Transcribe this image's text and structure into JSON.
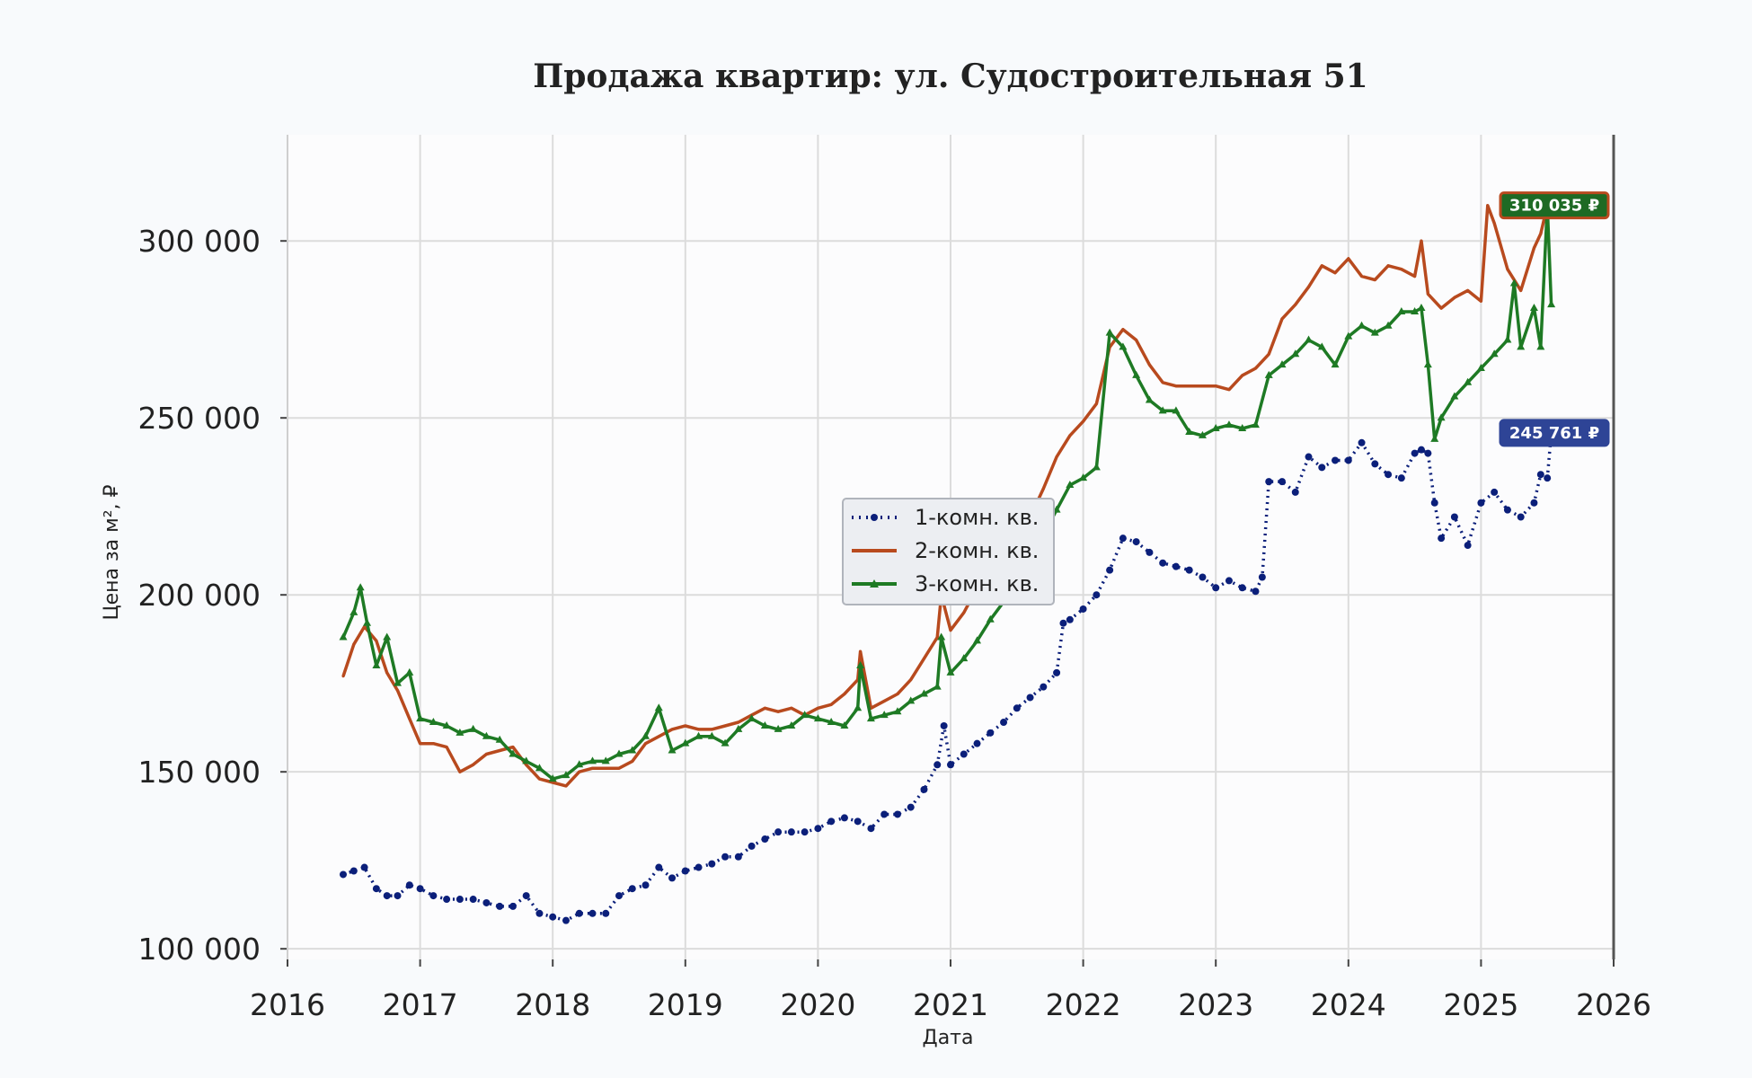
{
  "chart_data": {
    "type": "line",
    "title": "Продажа квартир: ул. Судостроительная 51",
    "xlabel": "Дата",
    "ylabel": "Цена за м², ₽",
    "xlim": [
      2016,
      2026
    ],
    "ylim": [
      97000,
      330000
    ],
    "x_ticks": [
      2016,
      2017,
      2018,
      2019,
      2020,
      2021,
      2022,
      2023,
      2024,
      2025,
      2026
    ],
    "y_ticks": [
      100000,
      150000,
      200000,
      250000,
      300000
    ],
    "y_tick_labels": [
      "100 000",
      "150 000",
      "200 000",
      "250 000",
      "300 000"
    ],
    "grid": true,
    "legend_position": "center",
    "series": [
      {
        "name": "1-комн. кв.",
        "color": "#0b1f7a",
        "style": "dotted-circle-markers",
        "x": [
          2016.42,
          2016.5,
          2016.58,
          2016.67,
          2016.75,
          2016.83,
          2016.92,
          2017.0,
          2017.1,
          2017.2,
          2017.3,
          2017.4,
          2017.5,
          2017.6,
          2017.7,
          2017.8,
          2017.9,
          2018.0,
          2018.1,
          2018.2,
          2018.3,
          2018.4,
          2018.5,
          2018.6,
          2018.7,
          2018.8,
          2018.9,
          2019.0,
          2019.1,
          2019.2,
          2019.3,
          2019.4,
          2019.5,
          2019.6,
          2019.7,
          2019.8,
          2019.9,
          2020.0,
          2020.1,
          2020.2,
          2020.3,
          2020.4,
          2020.5,
          2020.6,
          2020.7,
          2020.8,
          2020.9,
          2020.95,
          2021.0,
          2021.1,
          2021.2,
          2021.3,
          2021.4,
          2021.5,
          2021.6,
          2021.7,
          2021.8,
          2021.85,
          2021.9,
          2022.0,
          2022.1,
          2022.2,
          2022.3,
          2022.4,
          2022.5,
          2022.6,
          2022.7,
          2022.8,
          2022.9,
          2023.0,
          2023.1,
          2023.2,
          2023.3,
          2023.35,
          2023.4,
          2023.5,
          2023.6,
          2023.7,
          2023.8,
          2023.9,
          2024.0,
          2024.1,
          2024.2,
          2024.3,
          2024.4,
          2024.5,
          2024.55,
          2024.6,
          2024.65,
          2024.7,
          2024.8,
          2024.9,
          2025.0,
          2025.1,
          2025.2,
          2025.3,
          2025.4,
          2025.45,
          2025.5,
          2025.53
        ],
        "y": [
          121000,
          122000,
          123000,
          117000,
          115000,
          115000,
          118000,
          117000,
          115000,
          114000,
          114000,
          114000,
          113000,
          112000,
          112000,
          115000,
          110000,
          109000,
          108000,
          110000,
          110000,
          110000,
          115000,
          117000,
          118000,
          123000,
          120000,
          122000,
          123000,
          124000,
          126000,
          126000,
          129000,
          131000,
          133000,
          133000,
          133000,
          134000,
          136000,
          137000,
          136000,
          134000,
          138000,
          138000,
          140000,
          145000,
          152000,
          163000,
          152000,
          155000,
          158000,
          161000,
          164000,
          168000,
          171000,
          174000,
          178000,
          192000,
          193000,
          196000,
          200000,
          207000,
          216000,
          215000,
          212000,
          209000,
          208000,
          207000,
          205000,
          202000,
          204000,
          202000,
          201000,
          205000,
          232000,
          232000,
          229000,
          239000,
          236000,
          238000,
          238000,
          243000,
          237000,
          234000,
          233000,
          240000,
          241000,
          240000,
          226000,
          216000,
          222000,
          214000,
          226000,
          229000,
          224000,
          222000,
          226000,
          234000,
          233000,
          245761
        ]
      },
      {
        "name": "2-комн. кв.",
        "color": "#b84a1e",
        "style": "solid",
        "x": [
          2016.42,
          2016.5,
          2016.58,
          2016.67,
          2016.75,
          2016.83,
          2016.92,
          2017.0,
          2017.1,
          2017.2,
          2017.3,
          2017.4,
          2017.5,
          2017.6,
          2017.7,
          2017.8,
          2017.9,
          2018.0,
          2018.1,
          2018.2,
          2018.3,
          2018.4,
          2018.5,
          2018.6,
          2018.7,
          2018.8,
          2018.9,
          2019.0,
          2019.1,
          2019.2,
          2019.3,
          2019.4,
          2019.5,
          2019.6,
          2019.7,
          2019.8,
          2019.9,
          2020.0,
          2020.1,
          2020.2,
          2020.3,
          2020.32,
          2020.4,
          2020.5,
          2020.6,
          2020.7,
          2020.8,
          2020.9,
          2020.93,
          2021.0,
          2021.1,
          2021.2,
          2021.3,
          2021.4,
          2021.5,
          2021.6,
          2021.7,
          2021.8,
          2021.9,
          2022.0,
          2022.1,
          2022.2,
          2022.3,
          2022.4,
          2022.5,
          2022.6,
          2022.7,
          2022.8,
          2022.9,
          2023.0,
          2023.1,
          2023.2,
          2023.3,
          2023.4,
          2023.5,
          2023.6,
          2023.7,
          2023.8,
          2023.9,
          2024.0,
          2024.1,
          2024.2,
          2024.3,
          2024.4,
          2024.5,
          2024.55,
          2024.6,
          2024.7,
          2024.8,
          2024.9,
          2025.0,
          2025.05,
          2025.1,
          2025.2,
          2025.3,
          2025.4,
          2025.45,
          2025.5,
          2025.53
        ],
        "y": [
          177000,
          186000,
          191000,
          187000,
          178000,
          173000,
          165000,
          158000,
          158000,
          157000,
          150000,
          152000,
          155000,
          156000,
          157000,
          152000,
          148000,
          147000,
          146000,
          150000,
          151000,
          151000,
          151000,
          153000,
          158000,
          160000,
          162000,
          163000,
          162000,
          162000,
          163000,
          164000,
          166000,
          168000,
          167000,
          168000,
          166000,
          168000,
          169000,
          172000,
          176000,
          184000,
          168000,
          170000,
          172000,
          176000,
          182000,
          188000,
          200000,
          190000,
          195000,
          202000,
          208000,
          214000,
          218000,
          222000,
          230000,
          239000,
          245000,
          249000,
          254000,
          270000,
          275000,
          272000,
          265000,
          260000,
          259000,
          259000,
          259000,
          259000,
          258000,
          262000,
          264000,
          268000,
          278000,
          282000,
          287000,
          293000,
          291000,
          295000,
          290000,
          289000,
          293000,
          292000,
          290000,
          300000,
          285000,
          281000,
          284000,
          286000,
          283000,
          310000,
          305000,
          292000,
          286000,
          298000,
          302000,
          310035,
          310035
        ]
      },
      {
        "name": "3-комн. кв.",
        "color": "#1e7a24",
        "style": "solid-triangle-markers",
        "x": [
          2016.42,
          2016.5,
          2016.55,
          2016.6,
          2016.67,
          2016.75,
          2016.83,
          2016.92,
          2017.0,
          2017.1,
          2017.2,
          2017.3,
          2017.4,
          2017.5,
          2017.6,
          2017.7,
          2017.8,
          2017.9,
          2018.0,
          2018.1,
          2018.2,
          2018.3,
          2018.4,
          2018.5,
          2018.6,
          2018.7,
          2018.8,
          2018.9,
          2019.0,
          2019.1,
          2019.2,
          2019.3,
          2019.4,
          2019.5,
          2019.6,
          2019.7,
          2019.8,
          2019.9,
          2020.0,
          2020.1,
          2020.2,
          2020.3,
          2020.32,
          2020.4,
          2020.5,
          2020.6,
          2020.7,
          2020.8,
          2020.9,
          2020.93,
          2021.0,
          2021.1,
          2021.2,
          2021.3,
          2021.4,
          2021.5,
          2021.6,
          2021.7,
          2021.8,
          2021.9,
          2022.0,
          2022.1,
          2022.2,
          2022.3,
          2022.4,
          2022.5,
          2022.6,
          2022.7,
          2022.8,
          2022.9,
          2023.0,
          2023.1,
          2023.2,
          2023.3,
          2023.4,
          2023.5,
          2023.6,
          2023.7,
          2023.8,
          2023.9,
          2024.0,
          2024.1,
          2024.2,
          2024.3,
          2024.4,
          2024.5,
          2024.55,
          2024.6,
          2024.65,
          2024.7,
          2024.8,
          2024.9,
          2025.0,
          2025.1,
          2025.2,
          2025.25,
          2025.3,
          2025.4,
          2025.45,
          2025.5,
          2025.53
        ],
        "y": [
          188000,
          195000,
          202000,
          192000,
          180000,
          188000,
          175000,
          178000,
          165000,
          164000,
          163000,
          161000,
          162000,
          160000,
          159000,
          155000,
          153000,
          151000,
          148000,
          149000,
          152000,
          153000,
          153000,
          155000,
          156000,
          160000,
          168000,
          156000,
          158000,
          160000,
          160000,
          158000,
          162000,
          165000,
          163000,
          162000,
          163000,
          166000,
          165000,
          164000,
          163000,
          168000,
          180000,
          165000,
          166000,
          167000,
          170000,
          172000,
          174000,
          188000,
          178000,
          182000,
          187000,
          193000,
          198000,
          204000,
          211000,
          217000,
          224000,
          231000,
          233000,
          236000,
          274000,
          270000,
          262000,
          255000,
          252000,
          252000,
          246000,
          245000,
          247000,
          248000,
          247000,
          248000,
          262000,
          265000,
          268000,
          272000,
          270000,
          265000,
          273000,
          276000,
          274000,
          276000,
          280000,
          280000,
          281000,
          265000,
          244000,
          250000,
          256000,
          260000,
          264000,
          268000,
          272000,
          288000,
          270000,
          281000,
          270000,
          310035,
          282000
        ]
      }
    ],
    "end_labels": [
      {
        "text": "310 035 ₽",
        "value": 310035,
        "bg_color": "#1e6a24",
        "border_color": "#b84a1e"
      },
      {
        "text": "245 761 ₽",
        "value": 245761,
        "bg_color": "#2e4496",
        "border_color": "#2e4496"
      }
    ]
  }
}
